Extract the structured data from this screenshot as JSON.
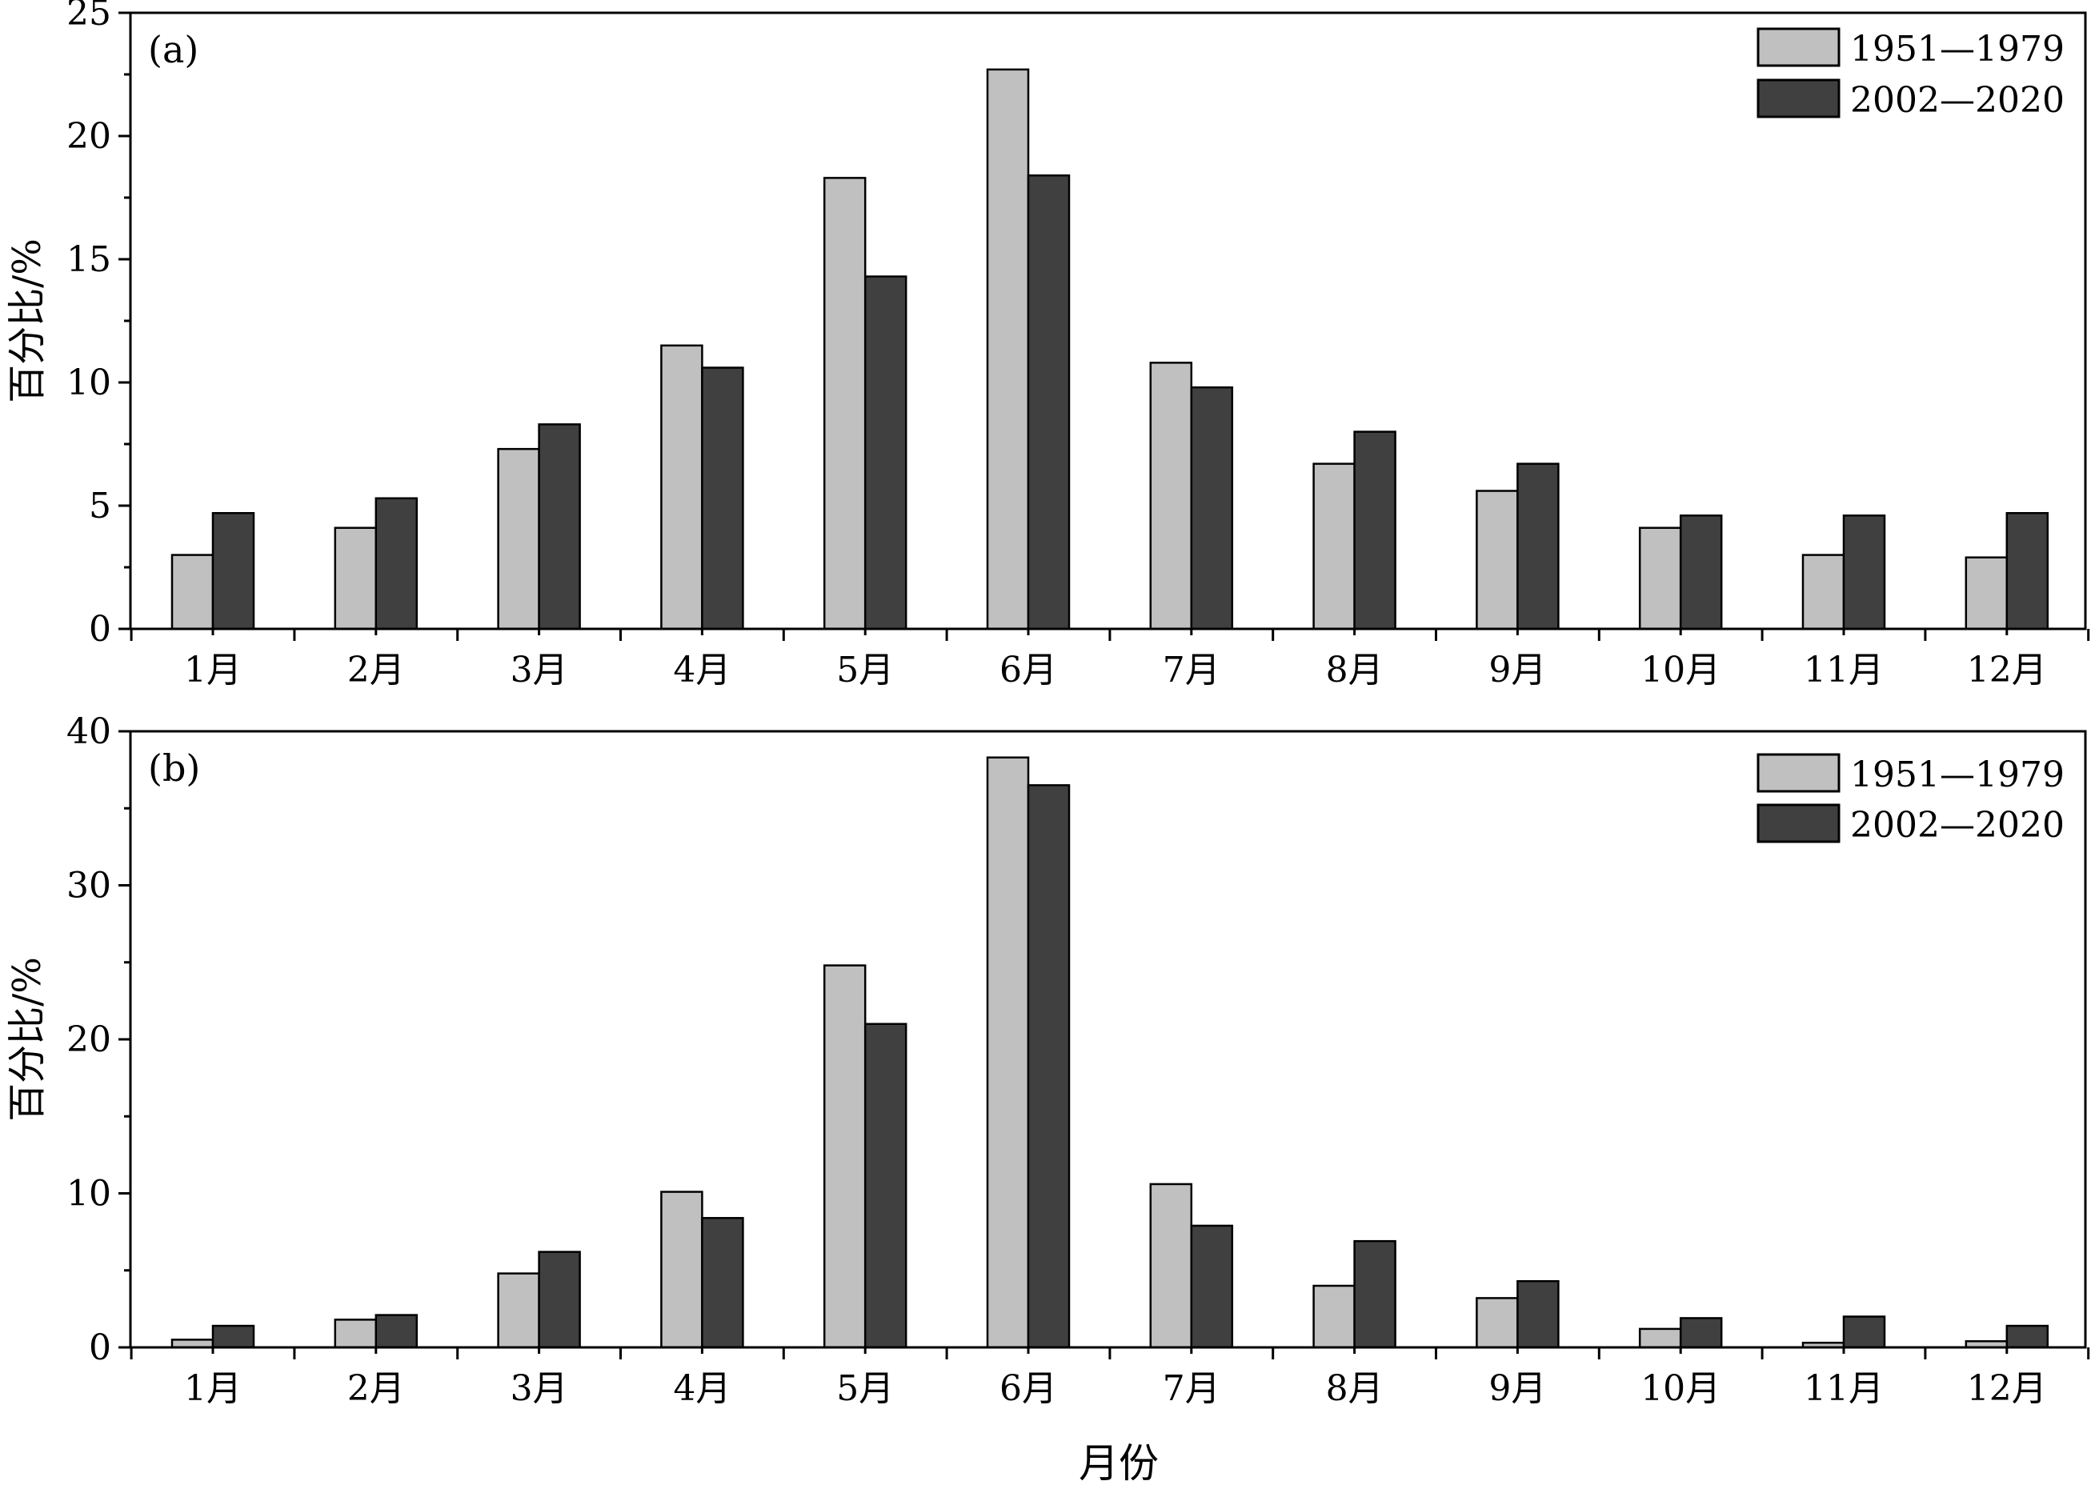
{
  "colors": {
    "series_1951_1979": "#c0c0c0",
    "series_2002_2020": "#404040",
    "axis": "#000000"
  },
  "figure": {
    "xlabel": "月份"
  },
  "chart_data": [
    {
      "type": "bar",
      "panel_label": "(a)",
      "categories": [
        "1月",
        "2月",
        "3月",
        "4月",
        "5月",
        "6月",
        "7月",
        "8月",
        "9月",
        "10月",
        "11月",
        "12月"
      ],
      "series": [
        {
          "name": "1951—1979",
          "values": [
            3.0,
            4.1,
            7.3,
            11.5,
            18.3,
            22.7,
            10.8,
            6.7,
            5.6,
            4.1,
            3.0,
            2.9
          ]
        },
        {
          "name": "2002—2020",
          "values": [
            4.7,
            5.3,
            8.3,
            10.6,
            14.3,
            18.4,
            9.8,
            8.0,
            6.7,
            4.6,
            4.6,
            4.7
          ]
        }
      ],
      "xlabel": "",
      "ylabel": "百分比/%",
      "ylim": [
        0,
        25
      ],
      "yticks": [
        0,
        5,
        10,
        15,
        20,
        25
      ],
      "grid": false,
      "legend_position": "top-right"
    },
    {
      "type": "bar",
      "panel_label": "(b)",
      "categories": [
        "1月",
        "2月",
        "3月",
        "4月",
        "5月",
        "6月",
        "7月",
        "8月",
        "9月",
        "10月",
        "11月",
        "12月"
      ],
      "series": [
        {
          "name": "1951—1979",
          "values": [
            0.5,
            1.8,
            4.8,
            10.1,
            24.8,
            38.3,
            10.6,
            4.0,
            3.2,
            1.2,
            0.3,
            0.4
          ]
        },
        {
          "name": "2002—2020",
          "values": [
            1.4,
            2.1,
            6.2,
            8.4,
            21.0,
            36.5,
            7.9,
            6.9,
            4.3,
            1.9,
            2.0,
            1.4
          ]
        }
      ],
      "xlabel": "月份",
      "ylabel": "百分比/%",
      "ylim": [
        0,
        40
      ],
      "yticks": [
        0,
        10,
        20,
        30,
        40
      ],
      "grid": false,
      "legend_position": "top-right"
    }
  ]
}
